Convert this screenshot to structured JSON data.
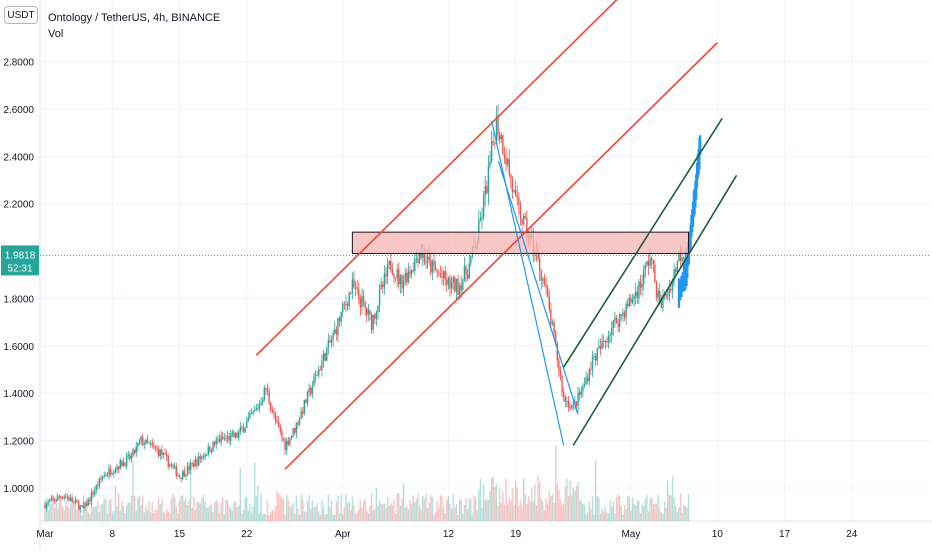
{
  "header": {
    "symbol_line": "Ontology / TetherUS, 4h, BINANCE",
    "indicator": "Vol",
    "unit_button": "USDT"
  },
  "price_tag": {
    "price": "1.9818",
    "countdown": "52:31"
  },
  "colors": {
    "up": "#26a69a",
    "down": "#ef5350",
    "projection": "#2196f3",
    "red_channel": "#f44336",
    "green_channel": "#1b5e3a",
    "blue_channel": "#2196f3",
    "zone_fill": "#f8b4b4",
    "price_line": "#26a69a"
  },
  "chart_data": {
    "type": "candlestick",
    "title": "Ontology / TetherUS, 4h, BINANCE",
    "interval": "4h",
    "y_axis": {
      "ticks": [
        1.0,
        1.2,
        1.4,
        1.6,
        1.8,
        2.0,
        2.2,
        2.4,
        2.6,
        2.8
      ],
      "tick_labels": [
        "1.0000",
        "1.2000",
        "1.4000",
        "1.6000",
        "1.8000",
        "2.0000",
        "2.2000",
        "2.4000",
        "2.6000",
        "2.8000"
      ]
    },
    "x_axis": {
      "tick_labels": [
        "Mar",
        "8",
        "15",
        "22",
        "Apr",
        "12",
        "19",
        "May",
        "10",
        "17",
        "24"
      ],
      "tick_days": [
        0,
        7,
        14,
        21,
        31,
        42,
        49,
        61,
        70,
        77,
        84
      ]
    },
    "last_price": 1.9818,
    "price_path": [
      [
        0,
        0.93
      ],
      [
        2,
        0.97
      ],
      [
        4,
        0.91
      ],
      [
        6,
        1.05
      ],
      [
        7,
        1.08
      ],
      [
        9,
        1.13
      ],
      [
        10,
        1.2
      ],
      [
        12,
        1.15
      ],
      [
        14,
        1.05
      ],
      [
        16,
        1.12
      ],
      [
        18,
        1.2
      ],
      [
        20,
        1.22
      ],
      [
        22,
        1.33
      ],
      [
        23,
        1.42
      ],
      [
        24,
        1.28
      ],
      [
        25,
        1.18
      ],
      [
        26,
        1.25
      ],
      [
        27,
        1.35
      ],
      [
        28,
        1.45
      ],
      [
        29,
        1.55
      ],
      [
        30,
        1.64
      ],
      [
        31,
        1.75
      ],
      [
        32,
        1.85
      ],
      [
        33,
        1.78
      ],
      [
        34,
        1.7
      ],
      [
        35,
        1.83
      ],
      [
        36,
        1.95
      ],
      [
        37,
        1.87
      ],
      [
        38,
        1.92
      ],
      [
        39,
        2.0
      ],
      [
        40,
        1.94
      ],
      [
        41,
        1.9
      ],
      [
        42,
        1.86
      ],
      [
        43,
        1.85
      ],
      [
        44,
        1.92
      ],
      [
        45,
        2.05
      ],
      [
        46,
        2.28
      ],
      [
        47,
        2.55
      ],
      [
        48,
        2.4
      ],
      [
        49,
        2.2
      ],
      [
        50,
        2.1
      ],
      [
        51,
        2.0
      ],
      [
        52,
        1.86
      ],
      [
        53,
        1.63
      ],
      [
        54,
        1.38
      ],
      [
        55,
        1.34
      ],
      [
        56,
        1.42
      ],
      [
        57,
        1.54
      ],
      [
        58,
        1.6
      ],
      [
        59,
        1.68
      ],
      [
        60,
        1.73
      ],
      [
        61,
        1.79
      ],
      [
        62,
        1.86
      ],
      [
        63,
        1.98
      ],
      [
        64,
        1.77
      ],
      [
        65,
        1.84
      ],
      [
        66,
        1.98
      ],
      [
        67,
        2.03
      ]
    ],
    "projection": [
      [
        66,
        1.82
      ],
      [
        66.8,
        1.92
      ],
      [
        67.3,
        2.1
      ],
      [
        67.8,
        2.28
      ],
      [
        68.3,
        2.48
      ]
    ],
    "drawings": {
      "red_channel_upper": [
        [
          22,
          1.56
        ],
        [
          60,
          3.08
        ]
      ],
      "red_channel_lower": [
        [
          25,
          1.08
        ],
        [
          70,
          2.88
        ]
      ],
      "green_channel_upper": [
        [
          54,
          1.51
        ],
        [
          70.5,
          2.56
        ]
      ],
      "green_channel_lower": [
        [
          55,
          1.18
        ],
        [
          72,
          2.32
        ]
      ],
      "blue_channel_upper": [
        [
          46.5,
          2.55
        ],
        [
          54,
          1.18
        ]
      ],
      "blue_channel_lower": [
        [
          47.2,
          2.38
        ],
        [
          55.5,
          1.31
        ]
      ],
      "resistance_zone": {
        "x_start": 32,
        "x_end": 67,
        "y_low": 1.99,
        "y_high": 2.08
      }
    }
  }
}
